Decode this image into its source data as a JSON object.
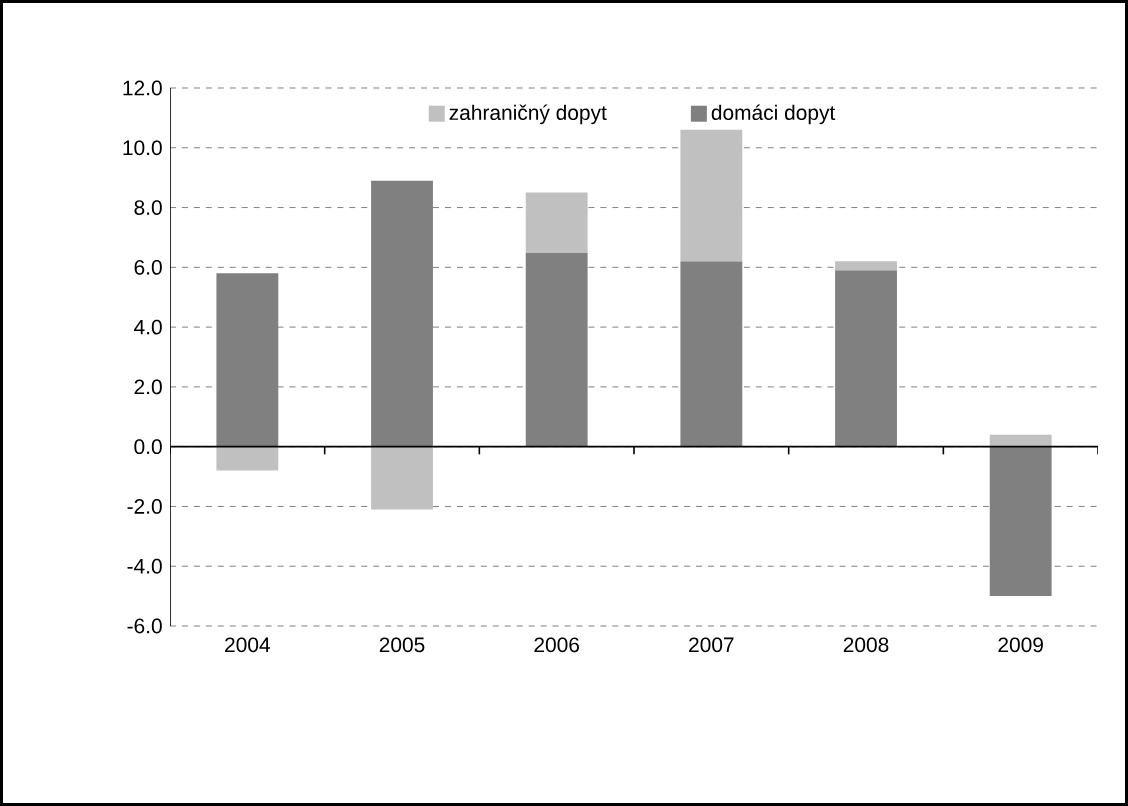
{
  "chart_data": {
    "type": "bar",
    "stacked": true,
    "categories": [
      "2004",
      "2005",
      "2006",
      "2007",
      "2008",
      "2009"
    ],
    "series": [
      {
        "name": "domáci dopyt",
        "color": "#808080",
        "values": [
          5.8,
          8.9,
          6.5,
          6.2,
          5.9,
          -5.0
        ]
      },
      {
        "name": "zahraničný dopyt",
        "color": "#c0c0c0",
        "values": [
          -0.8,
          -2.1,
          2.0,
          4.4,
          0.3,
          0.4
        ]
      }
    ],
    "ylim": [
      -6,
      12
    ],
    "yticks": [
      {
        "value": -6,
        "label": "-6.0"
      },
      {
        "value": -4,
        "label": "-4.0"
      },
      {
        "value": -2,
        "label": "-2.0"
      },
      {
        "value": 0,
        "label": "0.0"
      },
      {
        "value": 2,
        "label": "2.0"
      },
      {
        "value": 4,
        "label": "4.0"
      },
      {
        "value": 6,
        "label": "6.0"
      },
      {
        "value": 8,
        "label": "8.0"
      },
      {
        "value": 10,
        "label": "10.0"
      },
      {
        "value": 12,
        "label": "12.0"
      }
    ],
    "grid": "y",
    "legend": "top"
  }
}
